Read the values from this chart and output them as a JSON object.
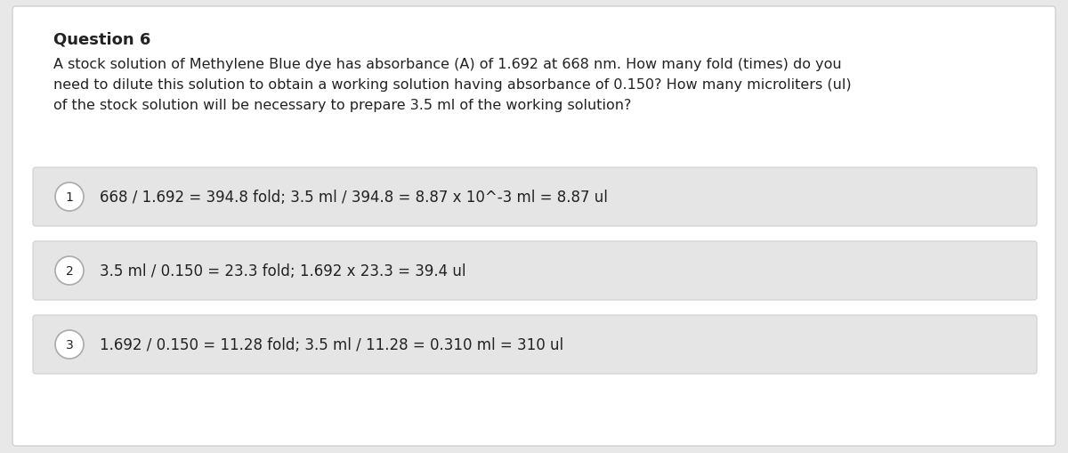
{
  "title": "Question 6",
  "question_text": "A stock solution of Methylene Blue dye has absorbance (A) of 1.692 at 668 nm. How many fold (times) do you\nneed to dilute this solution to obtain a working solution having absorbance of 0.150? How many microliters (ul)\nof the stock solution will be necessary to prepare 3.5 ml of the working solution?",
  "options": [
    {
      "number": "1",
      "text": "668 / 1.692 = 394.8 fold; 3.5 ml / 394.8 = 8.87 x 10^-3 ml = 8.87 ul"
    },
    {
      "number": "2",
      "text": "3.5 ml / 0.150 = 23.3 fold; 1.692 x 23.3 = 39.4 ul"
    },
    {
      "number": "3",
      "text": "1.692 / 0.150 = 11.28 fold; 3.5 ml / 11.28 = 0.310 ml = 310 ul"
    }
  ],
  "bg_color": "#e8e8e8",
  "card_bg": "#ffffff",
  "option_bg": "#e5e5e5",
  "title_fontsize": 13,
  "question_fontsize": 11.5,
  "option_fontsize": 12,
  "circle_color": "#ffffff",
  "circle_edge_color": "#aaaaaa",
  "text_color": "#222222"
}
